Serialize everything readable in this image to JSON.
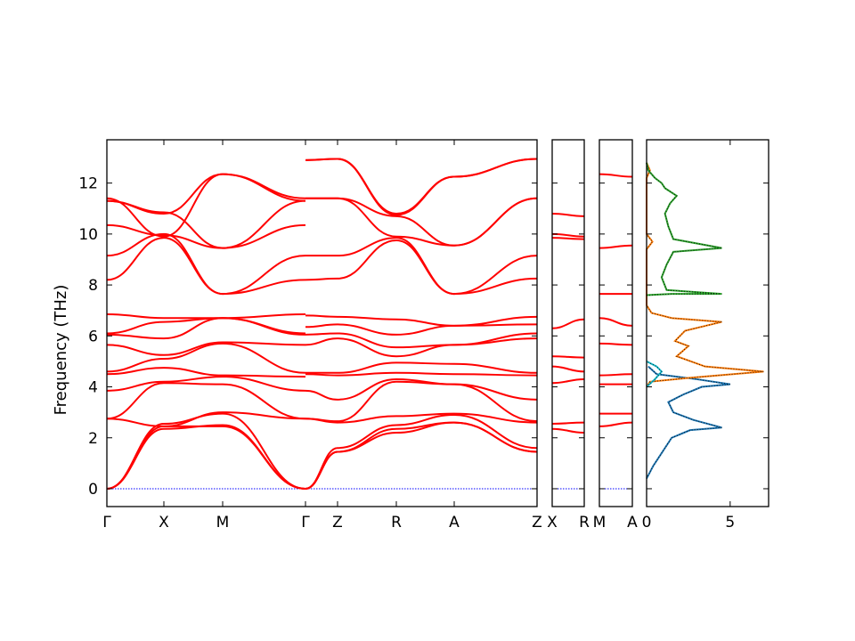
{
  "chart_data": {
    "type": "line",
    "title": "",
    "ylabel": "Frequency (THz)",
    "ylim": [
      -0.7,
      13.7
    ],
    "yticks": [
      0,
      2,
      4,
      6,
      8,
      10,
      12
    ],
    "band_color": "#ff0000",
    "zero_line_color": "#0000ff",
    "panels": [
      {
        "id": "main",
        "xticks": [
          "Γ",
          "X",
          "M",
          "Γ",
          "Z",
          "R",
          "A",
          "Z"
        ],
        "segments": [
          {
            "from": "Γ",
            "to": "X",
            "bands_start": [
              0,
              0,
              0,
              2.75,
              2.75,
              3.85,
              4.5,
              4.6,
              5.65,
              6.05,
              6.1,
              6.85,
              8.2,
              9.15,
              10.35,
              11.3,
              11.3,
              11.4
            ],
            "bands_end": [
              2.35,
              2.45,
              2.55,
              2.45,
              4.15,
              4.2,
              4.75,
              5.1,
              5.25,
              5.9,
              6.55,
              6.7,
              9.85,
              10.0,
              9.95,
              10.85,
              10.8,
              9.9
            ]
          },
          {
            "from": "X",
            "to": "M",
            "bands_start": [
              2.35,
              2.45,
              2.55,
              2.45,
              4.15,
              4.2,
              4.75,
              5.1,
              5.25,
              5.9,
              6.55,
              6.7,
              9.85,
              10.0,
              9.95,
              10.85,
              10.8,
              9.9
            ],
            "bands_end": [
              2.5,
              2.45,
              2.95,
              3.0,
              4.1,
              4.4,
              4.45,
              5.7,
              5.75,
              6.7,
              6.7,
              6.7,
              7.65,
              7.65,
              9.45,
              9.45,
              12.35,
              12.35
            ]
          },
          {
            "from": "M",
            "to": "Γ",
            "bands_start": [
              2.5,
              2.45,
              2.95,
              3.0,
              4.1,
              4.4,
              4.45,
              5.7,
              5.75,
              6.7,
              6.7,
              6.7,
              7.65,
              7.65,
              9.45,
              9.45,
              12.35,
              12.35
            ],
            "bands_end": [
              0,
              0,
              0,
              2.75,
              2.75,
              3.85,
              4.4,
              4.55,
              5.65,
              6.05,
              6.1,
              6.85,
              8.2,
              9.15,
              10.35,
              11.3,
              11.3,
              11.4
            ]
          },
          {
            "from": "Γ",
            "to": "Z",
            "bands_start": [
              0,
              0,
              0,
              2.75,
              2.75,
              3.85,
              4.5,
              4.55,
              5.65,
              6.05,
              6.35,
              6.8,
              8.2,
              9.15,
              11.4,
              11.4,
              12.9,
              12.9
            ],
            "bands_end": [
              1.45,
              1.45,
              1.6,
              2.6,
              2.65,
              3.5,
              4.45,
              4.55,
              5.9,
              6.1,
              6.45,
              6.75,
              8.25,
              9.15,
              11.4,
              11.4,
              12.95,
              12.95
            ]
          },
          {
            "from": "Z",
            "to": "R",
            "bands_start": [
              1.45,
              1.45,
              1.6,
              2.6,
              2.65,
              3.5,
              4.45,
              4.55,
              5.9,
              6.1,
              6.45,
              6.75,
              8.25,
              9.15,
              11.4,
              11.4,
              12.95,
              12.95
            ],
            "bands_end": [
              2.2,
              2.35,
              2.5,
              2.85,
              4.2,
              4.3,
              4.55,
              4.95,
              5.2,
              5.55,
              6.05,
              6.65,
              9.75,
              9.85,
              9.9,
              10.7,
              10.75,
              10.8
            ]
          },
          {
            "from": "R",
            "to": "A",
            "bands_start": [
              2.2,
              2.35,
              2.5,
              2.85,
              4.2,
              4.3,
              4.55,
              4.95,
              5.2,
              5.55,
              6.05,
              6.65,
              9.75,
              9.85,
              9.9,
              10.7,
              10.75,
              10.8
            ],
            "bands_end": [
              2.6,
              2.6,
              2.9,
              2.95,
              4.1,
              4.1,
              4.5,
              4.9,
              5.65,
              5.65,
              6.4,
              6.4,
              7.65,
              7.65,
              9.55,
              9.55,
              12.25,
              12.25
            ]
          },
          {
            "from": "A",
            "to": "Z",
            "bands_start": [
              2.6,
              2.6,
              2.9,
              2.95,
              4.1,
              4.1,
              4.5,
              4.9,
              5.65,
              5.65,
              6.4,
              6.4,
              7.65,
              7.65,
              9.55,
              9.55,
              12.25,
              12.25
            ],
            "bands_end": [
              1.45,
              1.45,
              1.6,
              2.6,
              2.65,
              3.5,
              4.45,
              4.55,
              5.9,
              6.1,
              6.45,
              6.75,
              8.25,
              9.15,
              11.4,
              11.4,
              12.95,
              12.95
            ]
          }
        ]
      },
      {
        "id": "xr",
        "xticks": [
          "X",
          "R"
        ],
        "bands_start": [
          2.35,
          2.55,
          4.15,
          4.8,
          5.2,
          6.3,
          9.85,
          10.0,
          10.8
        ],
        "bands_end": [
          2.2,
          2.6,
          4.3,
          4.6,
          5.15,
          6.65,
          9.8,
          9.9,
          10.7
        ]
      },
      {
        "id": "ma",
        "xticks": [
          "M",
          "A"
        ],
        "bands_start": [
          2.45,
          2.95,
          4.1,
          4.45,
          5.7,
          6.7,
          7.65,
          9.45,
          12.35
        ],
        "bands_end": [
          2.6,
          2.95,
          4.1,
          4.5,
          5.65,
          6.4,
          7.65,
          9.55,
          12.25
        ]
      },
      {
        "id": "dos",
        "xticks": [
          "0",
          "5"
        ],
        "xlim": [
          0,
          7.3
        ],
        "series": [
          {
            "color": "#1f77b4",
            "points": [
              [
                0,
                0.4
              ],
              [
                0.4,
                0.9
              ],
              [
                0.9,
                1.4
              ],
              [
                1.5,
                2.0
              ],
              [
                2.6,
                2.3
              ],
              [
                4.5,
                2.4
              ],
              [
                2.8,
                2.7
              ],
              [
                1.6,
                3.0
              ],
              [
                1.3,
                3.4
              ],
              [
                2.2,
                3.7
              ],
              [
                3.3,
                4.0
              ],
              [
                5.0,
                4.1
              ],
              [
                3.0,
                4.3
              ],
              [
                0.6,
                4.5
              ],
              [
                0.1,
                4.8
              ]
            ]
          },
          {
            "color": "#ff7f0e",
            "points": [
              [
                0,
                4.0
              ],
              [
                0.2,
                4.2
              ],
              [
                2.5,
                4.35
              ],
              [
                7.0,
                4.6
              ],
              [
                3.5,
                4.8
              ],
              [
                1.8,
                5.2
              ],
              [
                2.5,
                5.6
              ],
              [
                1.7,
                5.8
              ],
              [
                2.3,
                6.2
              ],
              [
                4.5,
                6.55
              ],
              [
                1.5,
                6.7
              ],
              [
                0.3,
                6.9
              ],
              [
                0,
                7.2
              ],
              [
                0,
                9.4
              ],
              [
                0.35,
                9.7
              ],
              [
                0,
                10.0
              ],
              [
                0,
                12.2
              ],
              [
                0.2,
                12.5
              ],
              [
                0,
                12.8
              ]
            ]
          },
          {
            "color": "#2ca02c",
            "points": [
              [
                0,
                7.6
              ],
              [
                1.5,
                7.65
              ],
              [
                4.5,
                7.65
              ],
              [
                1.2,
                7.8
              ],
              [
                0.9,
                8.3
              ],
              [
                1.2,
                8.8
              ],
              [
                1.6,
                9.3
              ],
              [
                4.5,
                9.45
              ],
              [
                1.6,
                9.8
              ],
              [
                1.3,
                10.3
              ],
              [
                1.1,
                10.8
              ],
              [
                1.4,
                11.2
              ],
              [
                1.8,
                11.5
              ],
              [
                1.1,
                11.8
              ],
              [
                0.9,
                12.0
              ],
              [
                0.5,
                12.2
              ],
              [
                0.1,
                12.5
              ],
              [
                0,
                12.8
              ]
            ]
          },
          {
            "color": "#17becf",
            "points": [
              [
                0,
                4.0
              ],
              [
                0.5,
                4.3
              ],
              [
                0.9,
                4.6
              ],
              [
                0.6,
                4.8
              ],
              [
                0,
                5.0
              ]
            ]
          }
        ]
      }
    ]
  }
}
